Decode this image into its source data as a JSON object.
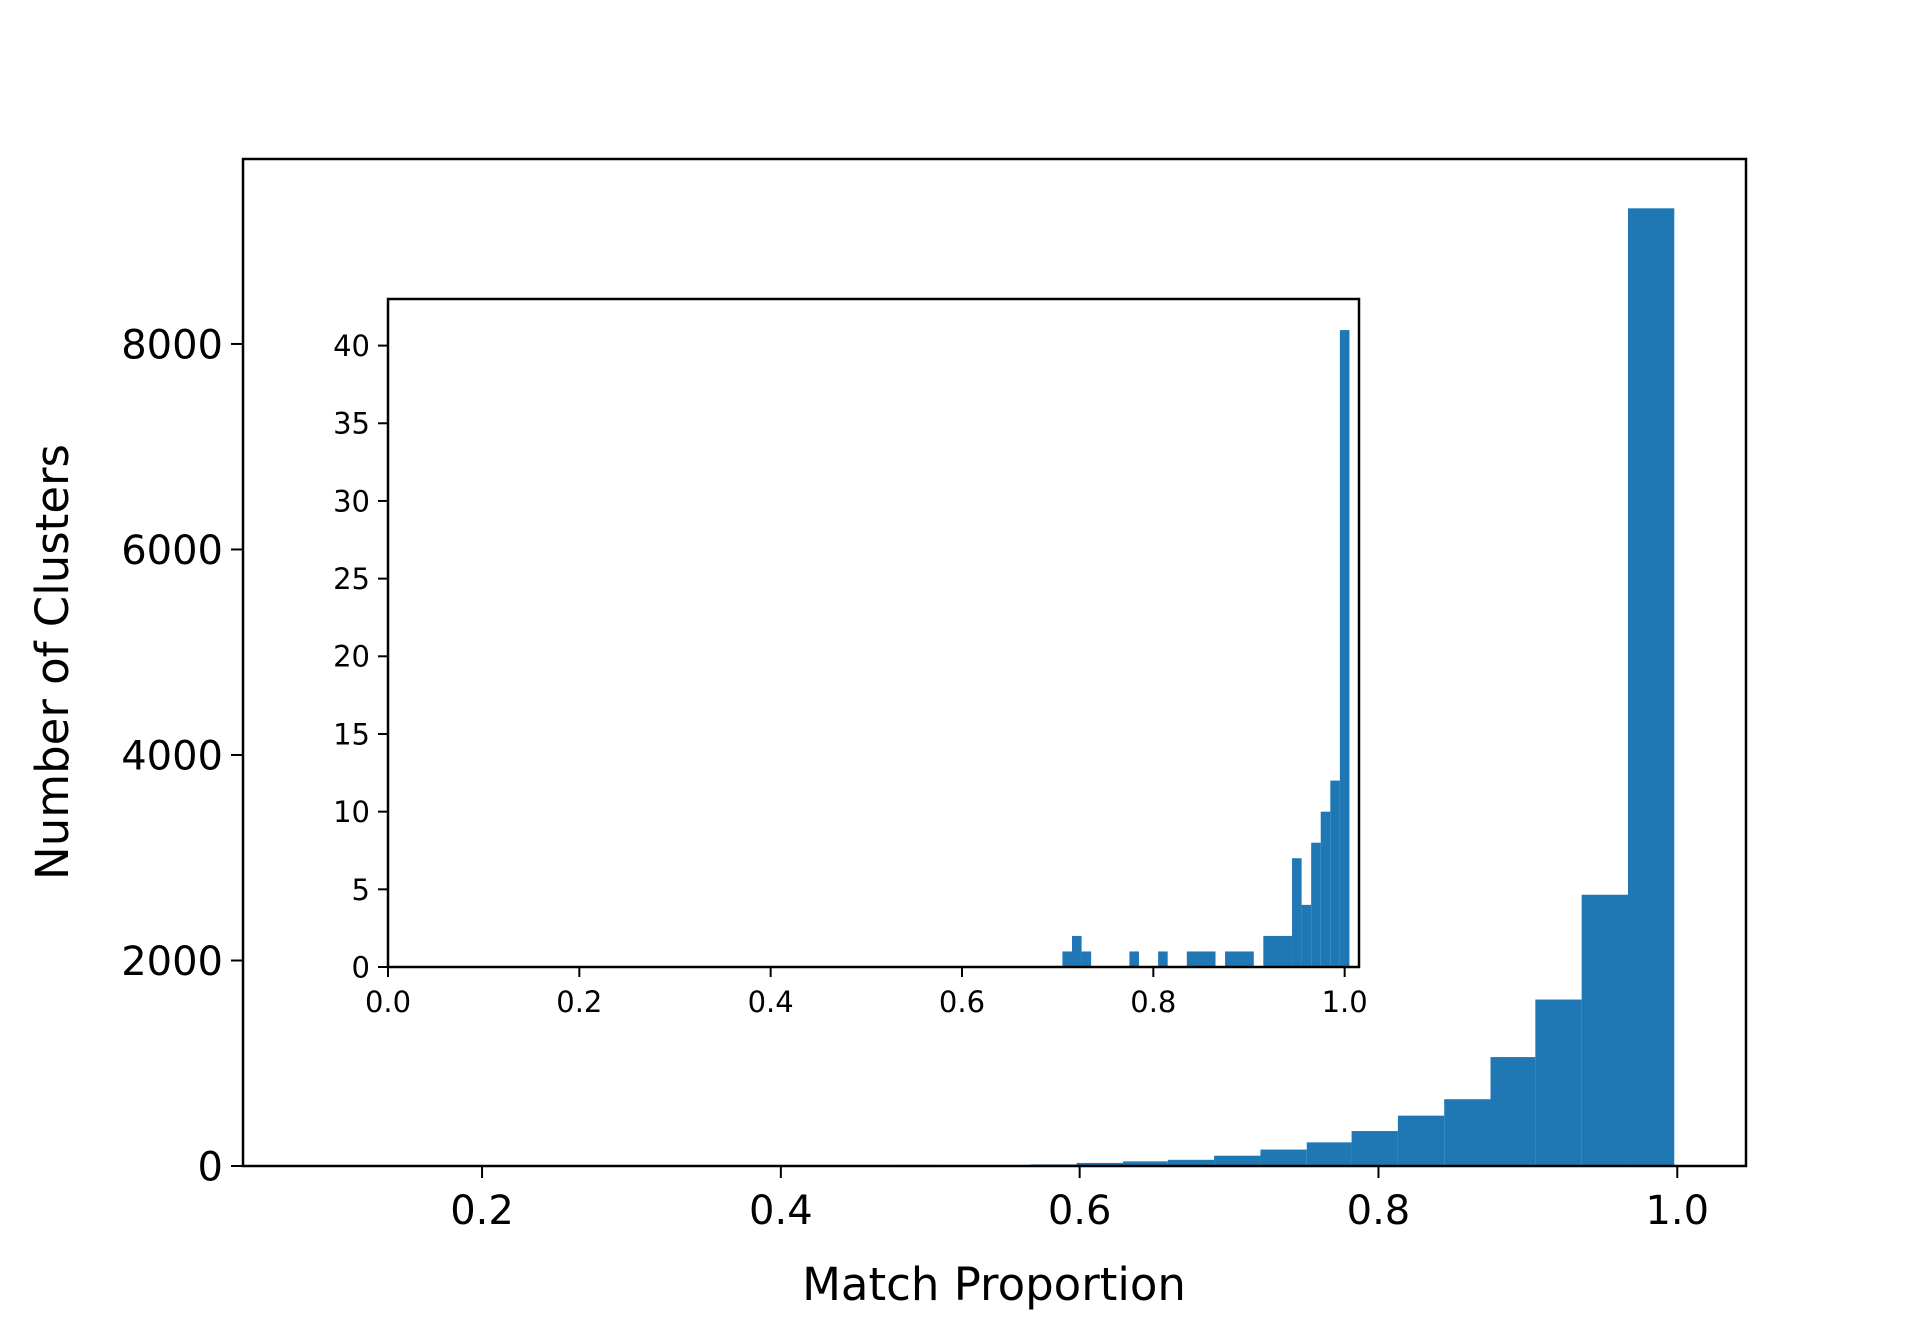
{
  "chart_data": [
    {
      "type": "bar",
      "role": "main",
      "xlabel": "Match Proportion",
      "ylabel": "Number of Clusters",
      "xlim": [
        0.04,
        1.046
      ],
      "ylim": [
        0,
        9800
      ],
      "x_ticks": [
        0.2,
        0.4,
        0.6,
        0.8,
        1.0
      ],
      "x_tick_labels": [
        "0.2",
        "0.4",
        "0.6",
        "0.8",
        "1.0"
      ],
      "y_ticks": [
        0,
        2000,
        4000,
        6000,
        8000
      ],
      "y_tick_labels": [
        "0",
        "2000",
        "4000",
        "6000",
        "8000"
      ],
      "bar_color": "#1f77b4",
      "bins": [
        {
          "x0": 0.475,
          "x1": 0.506,
          "value": 10
        },
        {
          "x0": 0.537,
          "x1": 0.567,
          "value": 8
        },
        {
          "x0": 0.567,
          "x1": 0.598,
          "value": 15
        },
        {
          "x0": 0.598,
          "x1": 0.629,
          "value": 30
        },
        {
          "x0": 0.629,
          "x1": 0.659,
          "value": 45
        },
        {
          "x0": 0.659,
          "x1": 0.69,
          "value": 60
        },
        {
          "x0": 0.69,
          "x1": 0.721,
          "value": 100
        },
        {
          "x0": 0.721,
          "x1": 0.752,
          "value": 160
        },
        {
          "x0": 0.752,
          "x1": 0.782,
          "value": 230
        },
        {
          "x0": 0.782,
          "x1": 0.813,
          "value": 340
        },
        {
          "x0": 0.813,
          "x1": 0.844,
          "value": 490
        },
        {
          "x0": 0.844,
          "x1": 0.875,
          "value": 650
        },
        {
          "x0": 0.875,
          "x1": 0.905,
          "value": 1060
        },
        {
          "x0": 0.905,
          "x1": 0.936,
          "value": 1620
        },
        {
          "x0": 0.936,
          "x1": 0.967,
          "value": 2640
        },
        {
          "x0": 0.967,
          "x1": 0.998,
          "value": 9320
        }
      ]
    },
    {
      "type": "bar",
      "role": "inset",
      "xlim": [
        0.0,
        1.015
      ],
      "ylim": [
        0,
        43
      ],
      "x_ticks": [
        0.0,
        0.2,
        0.4,
        0.6,
        0.8,
        1.0
      ],
      "x_tick_labels": [
        "0.0",
        "0.2",
        "0.4",
        "0.6",
        "0.8",
        "1.0"
      ],
      "y_ticks": [
        0,
        5,
        10,
        15,
        20,
        25,
        30,
        35,
        40
      ],
      "y_tick_labels": [
        "0",
        "5",
        "10",
        "15",
        "20",
        "25",
        "30",
        "35",
        "40"
      ],
      "bar_color": "#1f77b4",
      "bins": [
        {
          "x0": 0.705,
          "x1": 0.715,
          "value": 1
        },
        {
          "x0": 0.715,
          "x1": 0.725,
          "value": 2
        },
        {
          "x0": 0.725,
          "x1": 0.735,
          "value": 1
        },
        {
          "x0": 0.775,
          "x1": 0.785,
          "value": 1
        },
        {
          "x0": 0.805,
          "x1": 0.815,
          "value": 1
        },
        {
          "x0": 0.835,
          "x1": 0.865,
          "value": 1
        },
        {
          "x0": 0.875,
          "x1": 0.905,
          "value": 1
        },
        {
          "x0": 0.915,
          "x1": 0.945,
          "value": 2
        },
        {
          "x0": 0.945,
          "x1": 0.955,
          "value": 7
        },
        {
          "x0": 0.955,
          "x1": 0.965,
          "value": 4
        },
        {
          "x0": 0.965,
          "x1": 0.975,
          "value": 8
        },
        {
          "x0": 0.975,
          "x1": 0.985,
          "value": 10
        },
        {
          "x0": 0.985,
          "x1": 0.995,
          "value": 12
        },
        {
          "x0": 0.995,
          "x1": 1.005,
          "value": 41
        }
      ]
    }
  ]
}
